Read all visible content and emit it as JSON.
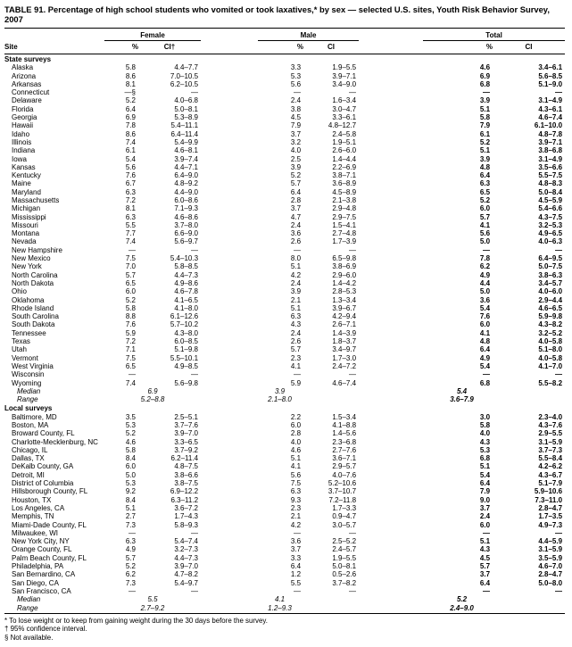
{
  "title": "TABLE 91. Percentage of high school students who vomited or took laxatives,* by sex — selected U.S. sites, Youth Risk Behavior Survey, 2007",
  "columns": {
    "site": "Site",
    "groups": [
      {
        "label": "Female",
        "pct": "%",
        "ci": "CI†"
      },
      {
        "label": "Male",
        "pct": "%",
        "ci": "CI"
      },
      {
        "label": "Total",
        "pct": "%",
        "ci": "CI"
      }
    ]
  },
  "sections": [
    {
      "label": "State surveys",
      "rows": [
        {
          "site": "Alaska",
          "values": [
            "5.8",
            "4.4–7.7",
            "3.3",
            "1.9–5.5",
            "4.6",
            "3.4–6.1"
          ]
        },
        {
          "site": "Arizona",
          "values": [
            "8.6",
            "7.0–10.5",
            "5.3",
            "3.9–7.1",
            "6.9",
            "5.6–8.5"
          ]
        },
        {
          "site": "Arkansas",
          "values": [
            "8.1",
            "6.2–10.5",
            "5.6",
            "3.4–9.0",
            "6.8",
            "5.1–9.0"
          ]
        },
        {
          "site": "Connecticut",
          "values": [
            "—§",
            "—",
            "—",
            "—",
            "—",
            "—"
          ]
        },
        {
          "site": "Delaware",
          "values": [
            "5.2",
            "4.0–6.8",
            "2.4",
            "1.6–3.4",
            "3.9",
            "3.1–4.9"
          ]
        },
        {
          "site": "Florida",
          "values": [
            "6.4",
            "5.0–8.1",
            "3.8",
            "3.0–4.7",
            "5.1",
            "4.3–6.1"
          ]
        },
        {
          "site": "Georgia",
          "values": [
            "6.9",
            "5.3–8.9",
            "4.5",
            "3.3–6.1",
            "5.8",
            "4.6–7.4"
          ]
        },
        {
          "site": "Hawaii",
          "values": [
            "7.8",
            "5.4–11.1",
            "7.9",
            "4.8–12.7",
            "7.9",
            "6.1–10.0"
          ]
        },
        {
          "site": "Idaho",
          "values": [
            "8.6",
            "6.4–11.4",
            "3.7",
            "2.4–5.8",
            "6.1",
            "4.8–7.8"
          ]
        },
        {
          "site": "Illinois",
          "values": [
            "7.4",
            "5.4–9.9",
            "3.2",
            "1.9–5.1",
            "5.2",
            "3.9–7.1"
          ]
        },
        {
          "site": "Indiana",
          "values": [
            "6.1",
            "4.6–8.1",
            "4.0",
            "2.6–6.0",
            "5.1",
            "3.8–6.8"
          ]
        },
        {
          "site": "Iowa",
          "values": [
            "5.4",
            "3.9–7.4",
            "2.5",
            "1.4–4.4",
            "3.9",
            "3.1–4.9"
          ]
        },
        {
          "site": "Kansas",
          "values": [
            "5.6",
            "4.4–7.1",
            "3.9",
            "2.2–6.9",
            "4.8",
            "3.5–6.6"
          ]
        },
        {
          "site": "Kentucky",
          "values": [
            "7.6",
            "6.4–9.0",
            "5.2",
            "3.8–7.1",
            "6.4",
            "5.5–7.5"
          ]
        },
        {
          "site": "Maine",
          "values": [
            "6.7",
            "4.8–9.2",
            "5.7",
            "3.6–8.9",
            "6.3",
            "4.8–8.3"
          ]
        },
        {
          "site": "Maryland",
          "values": [
            "6.3",
            "4.4–9.0",
            "6.4",
            "4.5–8.9",
            "6.5",
            "5.0–8.4"
          ]
        },
        {
          "site": "Massachusetts",
          "values": [
            "7.2",
            "6.0–8.6",
            "2.8",
            "2.1–3.8",
            "5.2",
            "4.5–5.9"
          ]
        },
        {
          "site": "Michigan",
          "values": [
            "8.1",
            "7.1–9.3",
            "3.7",
            "2.9–4.8",
            "6.0",
            "5.4–6.6"
          ]
        },
        {
          "site": "Mississippi",
          "values": [
            "6.3",
            "4.6–8.6",
            "4.7",
            "2.9–7.5",
            "5.7",
            "4.3–7.5"
          ]
        },
        {
          "site": "Missouri",
          "values": [
            "5.5",
            "3.7–8.0",
            "2.4",
            "1.5–4.1",
            "4.1",
            "3.2–5.3"
          ]
        },
        {
          "site": "Montana",
          "values": [
            "7.7",
            "6.6–9.0",
            "3.6",
            "2.7–4.8",
            "5.6",
            "4.9–6.5"
          ]
        },
        {
          "site": "Nevada",
          "values": [
            "7.4",
            "5.6–9.7",
            "2.6",
            "1.7–3.9",
            "5.0",
            "4.0–6.3"
          ]
        },
        {
          "site": "New Hampshire",
          "values": [
            "—",
            "—",
            "—",
            "—",
            "—",
            "—"
          ]
        },
        {
          "site": "New Mexico",
          "values": [
            "7.5",
            "5.4–10.3",
            "8.0",
            "6.5–9.8",
            "7.8",
            "6.4–9.5"
          ]
        },
        {
          "site": "New York",
          "values": [
            "7.0",
            "5.8–8.5",
            "5.1",
            "3.8–6.9",
            "6.2",
            "5.0–7.5"
          ]
        },
        {
          "site": "North Carolina",
          "values": [
            "5.7",
            "4.4–7.3",
            "4.2",
            "2.9–6.0",
            "4.9",
            "3.8–6.3"
          ]
        },
        {
          "site": "North Dakota",
          "values": [
            "6.5",
            "4.9–8.6",
            "2.4",
            "1.4–4.2",
            "4.4",
            "3.4–5.7"
          ]
        },
        {
          "site": "Ohio",
          "values": [
            "6.0",
            "4.6–7.8",
            "3.9",
            "2.8–5.3",
            "5.0",
            "4.0–6.0"
          ]
        },
        {
          "site": "Oklahoma",
          "values": [
            "5.2",
            "4.1–6.5",
            "2.1",
            "1.3–3.4",
            "3.6",
            "2.9–4.4"
          ]
        },
        {
          "site": "Rhode Island",
          "values": [
            "5.8",
            "4.1–8.0",
            "5.1",
            "3.9–6.7",
            "5.4",
            "4.6–6.5"
          ]
        },
        {
          "site": "South Carolina",
          "values": [
            "8.8",
            "6.1–12.6",
            "6.3",
            "4.2–9.4",
            "7.6",
            "5.9–9.8"
          ]
        },
        {
          "site": "South Dakota",
          "values": [
            "7.6",
            "5.7–10.2",
            "4.3",
            "2.6–7.1",
            "6.0",
            "4.3–8.2"
          ]
        },
        {
          "site": "Tennessee",
          "values": [
            "5.9",
            "4.3–8.0",
            "2.4",
            "1.4–3.9",
            "4.1",
            "3.2–5.2"
          ]
        },
        {
          "site": "Texas",
          "values": [
            "7.2",
            "6.0–8.5",
            "2.6",
            "1.8–3.7",
            "4.8",
            "4.0–5.8"
          ]
        },
        {
          "site": "Utah",
          "values": [
            "7.1",
            "5.1–9.8",
            "5.7",
            "3.4–9.7",
            "6.4",
            "5.1–8.0"
          ]
        },
        {
          "site": "Vermont",
          "values": [
            "7.5",
            "5.5–10.1",
            "2.3",
            "1.7–3.0",
            "4.9",
            "4.0–5.8"
          ]
        },
        {
          "site": "West Virginia",
          "values": [
            "6.5",
            "4.9–8.5",
            "4.1",
            "2.4–7.2",
            "5.4",
            "4.1–7.0"
          ]
        },
        {
          "site": "Wisconsin",
          "values": [
            "—",
            "—",
            "—",
            "—",
            "—",
            "—"
          ]
        },
        {
          "site": "Wyoming",
          "values": [
            "7.4",
            "5.6–9.8",
            "5.9",
            "4.6–7.4",
            "6.8",
            "5.5–8.2"
          ]
        }
      ],
      "summary": [
        {
          "label": "Median",
          "values": [
            "6.9",
            "3.9",
            "5.4"
          ]
        },
        {
          "label": "Range",
          "values": [
            "5.2–8.8",
            "2.1–8.0",
            "3.6–7.9"
          ]
        }
      ]
    },
    {
      "label": "Local surveys",
      "rows": [
        {
          "site": "Baltimore, MD",
          "values": [
            "3.5",
            "2.5–5.1",
            "2.2",
            "1.5–3.4",
            "3.0",
            "2.3–4.0"
          ]
        },
        {
          "site": "Boston, MA",
          "values": [
            "5.3",
            "3.7–7.6",
            "6.0",
            "4.1–8.8",
            "5.8",
            "4.3–7.6"
          ]
        },
        {
          "site": "Broward County, FL",
          "values": [
            "5.2",
            "3.9–7.0",
            "2.8",
            "1.4–5.6",
            "4.0",
            "2.9–5.5"
          ]
        },
        {
          "site": "Charlotte-Mecklenburg, NC",
          "values": [
            "4.6",
            "3.3–6.5",
            "4.0",
            "2.3–6.8",
            "4.3",
            "3.1–5.9"
          ]
        },
        {
          "site": "Chicago, IL",
          "values": [
            "5.8",
            "3.7–9.2",
            "4.6",
            "2.7–7.6",
            "5.3",
            "3.7–7.3"
          ]
        },
        {
          "site": "Dallas, TX",
          "values": [
            "8.4",
            "6.2–11.4",
            "5.1",
            "3.6–7.1",
            "6.8",
            "5.5–8.4"
          ]
        },
        {
          "site": "DeKalb County, GA",
          "values": [
            "6.0",
            "4.8–7.5",
            "4.1",
            "2.9–5.7",
            "5.1",
            "4.2–6.2"
          ]
        },
        {
          "site": "Detroit, MI",
          "values": [
            "5.0",
            "3.8–6.6",
            "5.6",
            "4.0–7.6",
            "5.4",
            "4.3–6.7"
          ]
        },
        {
          "site": "District of Columbia",
          "values": [
            "5.3",
            "3.8–7.5",
            "7.5",
            "5.2–10.6",
            "6.4",
            "5.1–7.9"
          ]
        },
        {
          "site": "Hillsborough County, FL",
          "values": [
            "9.2",
            "6.9–12.2",
            "6.3",
            "3.7–10.7",
            "7.9",
            "5.9–10.6"
          ]
        },
        {
          "site": "Houston, TX",
          "values": [
            "8.4",
            "6.3–11.2",
            "9.3",
            "7.2–11.8",
            "9.0",
            "7.3–11.0"
          ]
        },
        {
          "site": "Los Angeles, CA",
          "values": [
            "5.1",
            "3.6–7.2",
            "2.3",
            "1.7–3.3",
            "3.7",
            "2.8–4.7"
          ]
        },
        {
          "site": "Memphis, TN",
          "values": [
            "2.7",
            "1.7–4.3",
            "2.1",
            "0.9–4.7",
            "2.4",
            "1.7–3.5"
          ]
        },
        {
          "site": "Miami-Dade County, FL",
          "values": [
            "7.3",
            "5.8–9.3",
            "4.2",
            "3.0–5.7",
            "6.0",
            "4.9–7.3"
          ]
        },
        {
          "site": "Milwaukee, WI",
          "values": [
            "—",
            "—",
            "—",
            "—",
            "—",
            "—"
          ]
        },
        {
          "site": "New York City, NY",
          "values": [
            "6.3",
            "5.4–7.4",
            "3.6",
            "2.5–5.2",
            "5.1",
            "4.4–5.9"
          ]
        },
        {
          "site": "Orange County, FL",
          "values": [
            "4.9",
            "3.2–7.3",
            "3.7",
            "2.4–5.7",
            "4.3",
            "3.1–5.9"
          ]
        },
        {
          "site": "Palm Beach County, FL",
          "values": [
            "5.7",
            "4.4–7.3",
            "3.3",
            "1.9–5.5",
            "4.5",
            "3.5–5.9"
          ]
        },
        {
          "site": "Philadelphia, PA",
          "values": [
            "5.2",
            "3.9–7.0",
            "6.4",
            "5.0–8.1",
            "5.7",
            "4.6–7.0"
          ]
        },
        {
          "site": "San Bernardino, CA",
          "values": [
            "6.2",
            "4.7–8.2",
            "1.2",
            "0.5–2.6",
            "3.7",
            "2.8–4.7"
          ]
        },
        {
          "site": "San Diego, CA",
          "values": [
            "7.3",
            "5.4–9.7",
            "5.5",
            "3.7–8.2",
            "6.4",
            "5.0–8.0"
          ]
        },
        {
          "site": "San Francisco, CA",
          "values": [
            "—",
            "—",
            "—",
            "—",
            "—",
            "—"
          ]
        }
      ],
      "summary": [
        {
          "label": "Median",
          "values": [
            "5.5",
            "4.1",
            "5.2"
          ]
        },
        {
          "label": "Range",
          "values": [
            "2.7–9.2",
            "1.2–9.3",
            "2.4–9.0"
          ]
        }
      ]
    }
  ],
  "footnotes": [
    "* To lose weight or to keep from gaining weight during the 30 days before the survey.",
    "† 95% confidence interval.",
    "§ Not available."
  ]
}
